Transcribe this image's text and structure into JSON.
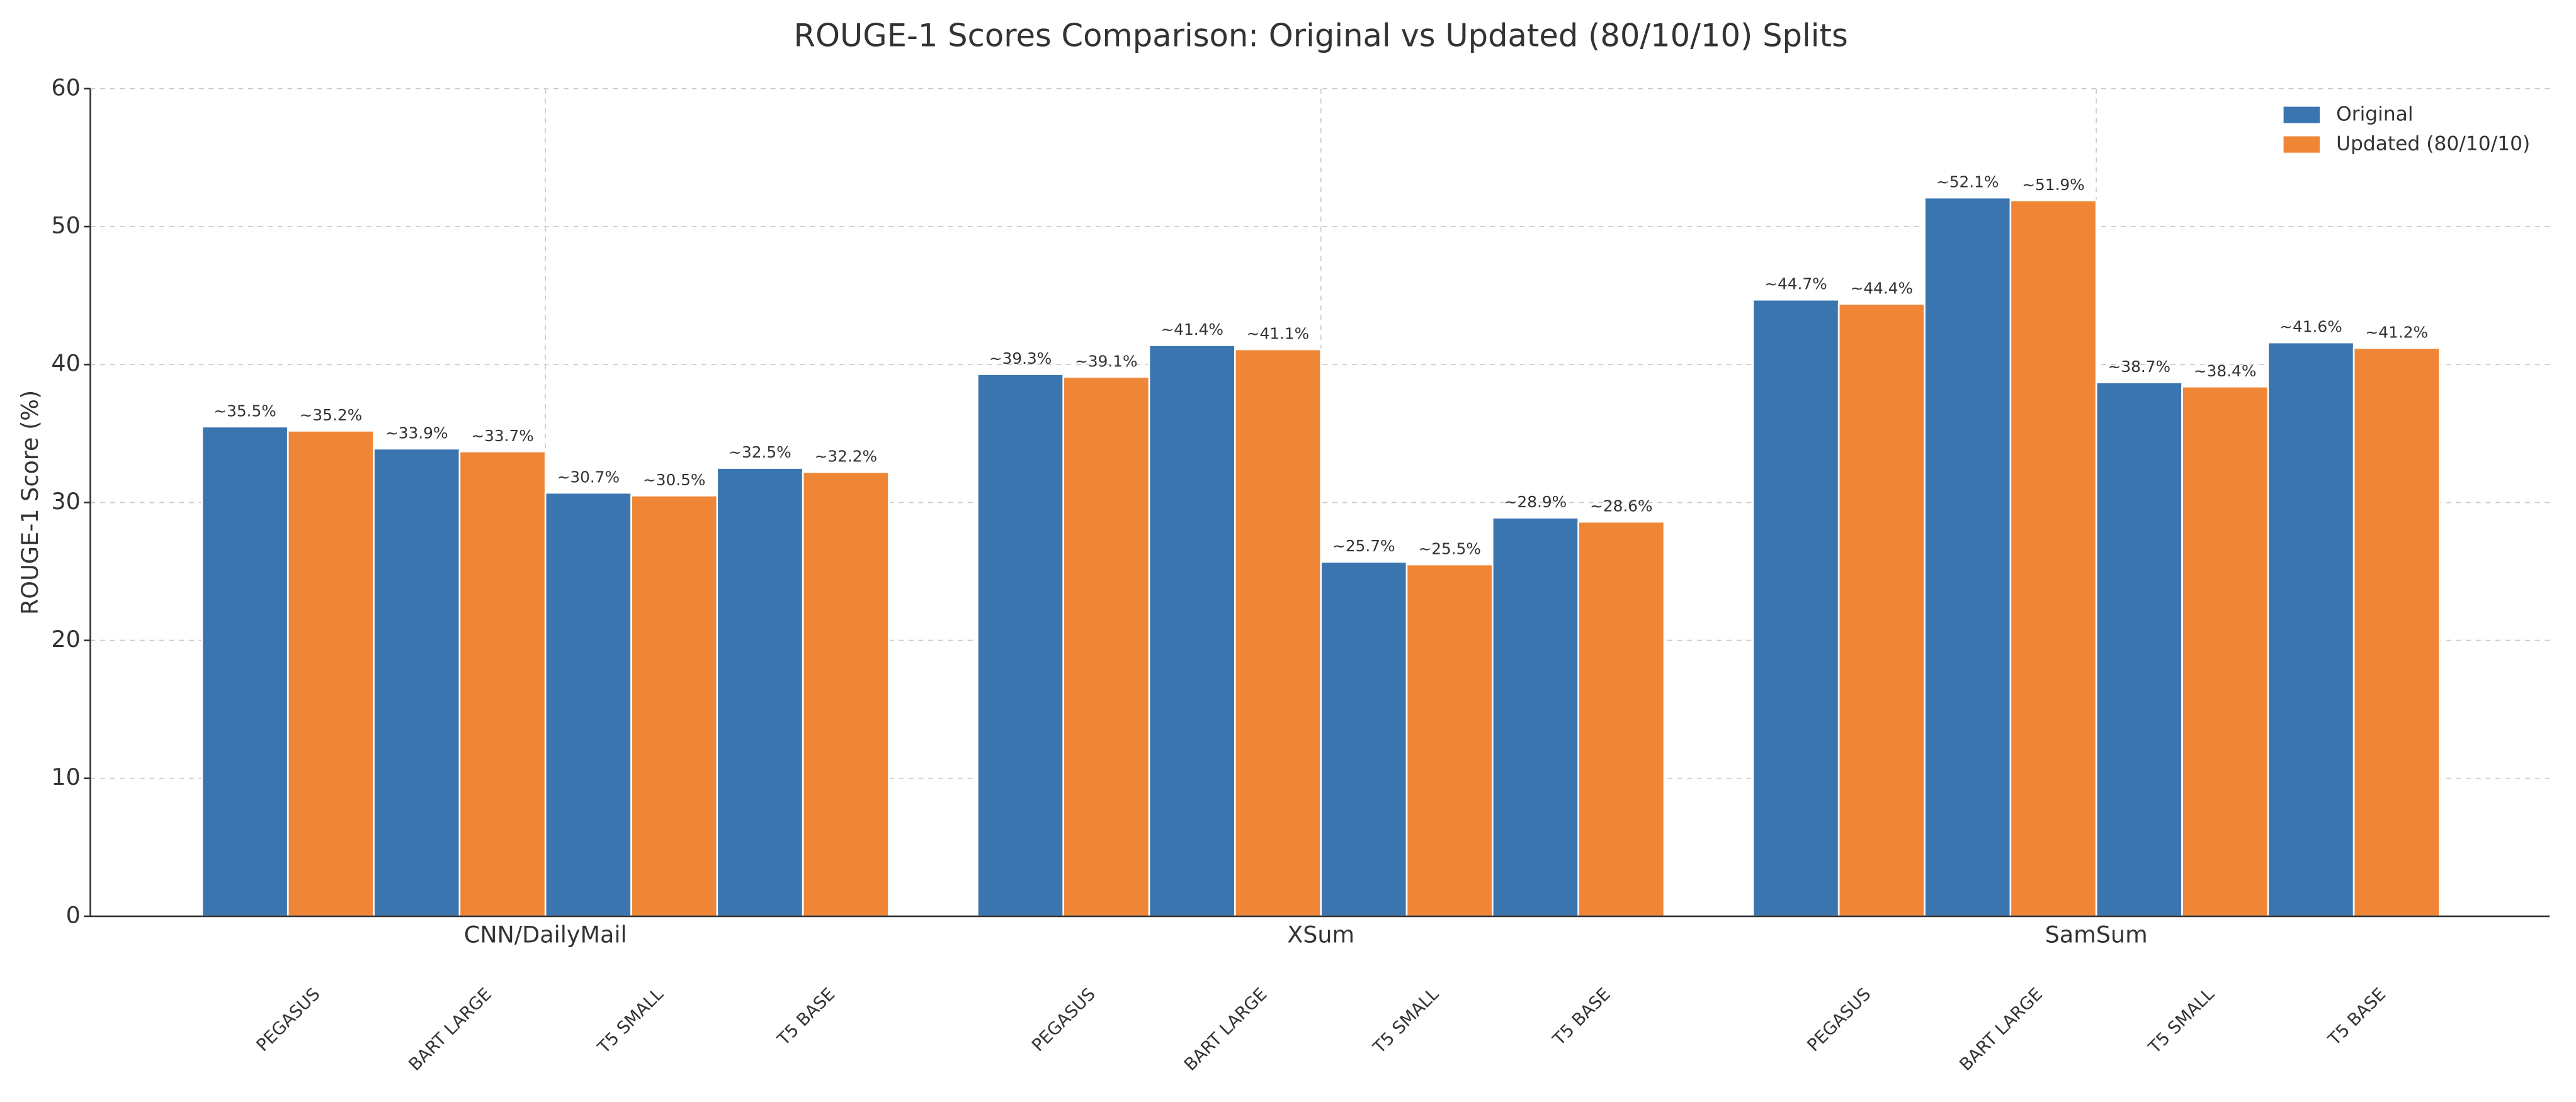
{
  "chart_data": {
    "type": "bar",
    "title": "ROUGE-1 Scores Comparison: Original vs Updated (80/10/10) Splits",
    "y_label": "ROUGE-1 Score (%)",
    "groups": [
      "CNN/DailyMail",
      "XSum",
      "SamSum"
    ],
    "categories": [
      "PEGASUS",
      "BART LARGE",
      "T5 SMALL",
      "T5 BASE",
      "PEGASUS",
      "BART LARGE",
      "T5 SMALL",
      "T5 BASE",
      "PEGASUS",
      "BART LARGE",
      "T5 SMALL",
      "T5 BASE"
    ],
    "series": [
      {
        "name": "Original",
        "color": "#3a75b0",
        "values": [
          35.5,
          33.9,
          30.7,
          32.5,
          39.3,
          41.4,
          25.7,
          28.9,
          44.7,
          52.1,
          38.7,
          41.6
        ],
        "value_labels": [
          "~35.5%",
          "~33.9%",
          "~30.7%",
          "~32.5%",
          "~39.3%",
          "~41.4%",
          "~25.7%",
          "~28.9%",
          "~44.7%",
          "~52.1%",
          "~38.7%",
          "~41.6%"
        ]
      },
      {
        "name": "Updated (80/10/10)",
        "color": "#ef8636",
        "values": [
          35.2,
          33.7,
          30.5,
          32.2,
          39.1,
          41.1,
          25.5,
          28.6,
          44.4,
          51.9,
          38.4,
          41.2
        ],
        "value_labels": [
          "~35.2%",
          "~33.7%",
          "~30.5%",
          "~32.2%",
          "~39.1%",
          "~41.1%",
          "~25.5%",
          "~28.6%",
          "~44.4%",
          "~51.9%",
          "~38.4%",
          "~41.2%"
        ]
      }
    ],
    "ylim": [
      0,
      60
    ],
    "yticks": [
      0,
      10,
      20,
      30,
      40,
      50,
      60
    ],
    "grid": true,
    "legend": "upper right"
  }
}
